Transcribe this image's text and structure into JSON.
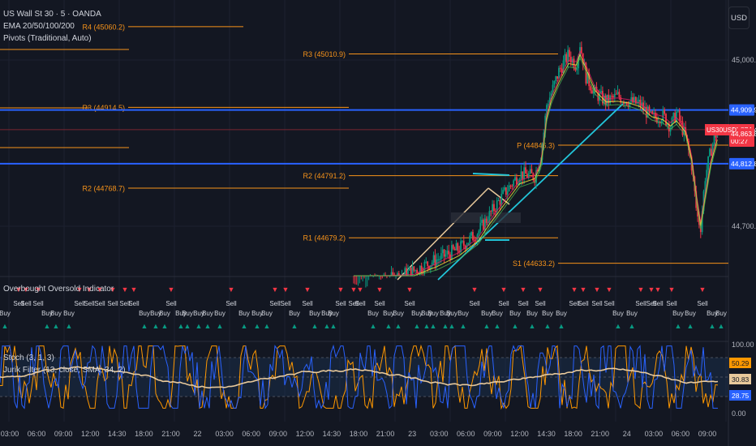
{
  "header": {
    "symbol_line": "US Wall St 30 · 5 · OANDA",
    "ema_line": "EMA 20/50/100/200",
    "pivots_line": "Pivots (Traditional, Auto)",
    "currency_button": "USD"
  },
  "indicators": {
    "ob_os_title": "Overbought Oversold Indicator",
    "stoch_title": "Stoch (3, 1, 3)",
    "jurik_title": "Jurik Filter (13, close, SMA, 34, 2)",
    "sell_label": "Sell",
    "buy_label": "Buy"
  },
  "price_scale": {
    "ticks": [
      "45,000.0",
      "44,700.0"
    ],
    "symbol_tag": "US30USD",
    "last_price": "44,874.4",
    "countdown": "00:27",
    "red_marker": "44,863.8",
    "blue_upper": "44,909.9",
    "blue_lower": "44,812.8"
  },
  "osc_scale": {
    "ticks": [
      "100.00",
      "0.00"
    ],
    "stoch_k": "50.29",
    "stoch_d": "30.83",
    "jurik": "28.75"
  },
  "time_axis": [
    "03:00",
    "06:00",
    "09:00",
    "12:00",
    "14:30",
    "18:00",
    "21:00",
    "22",
    "03:00",
    "06:00",
    "09:00",
    "12:00",
    "14:30",
    "18:00",
    "21:00",
    "23",
    "03:00",
    "06:00",
    "09:00",
    "12:00",
    "14:30",
    "18:00",
    "21:00",
    "24",
    "03:00",
    "06:00",
    "09:00"
  ],
  "colors": {
    "background": "#131722",
    "pivot": "#f7931a",
    "blue_line": "#2962ff",
    "trend_cyan": "#22c5d9",
    "trend_tan": "#e8c99b",
    "sell": "#f23645",
    "buy": "#089981",
    "stoch_k": "#2962ff",
    "stoch_d": "#ff9800",
    "jurik": "#e8c99b"
  },
  "chart_data": {
    "type": "line",
    "title": "US Wall St 30 · 5 · OANDA",
    "ylim": [
      44600,
      45060
    ],
    "pivots": [
      {
        "name": "R4",
        "label": "R4 (45060.2)",
        "value": 45060.2
      },
      {
        "name": "R3",
        "label": "R3 (45010.9)",
        "value": 45010.9
      },
      {
        "name": "R3",
        "label": "R3 (44914.5)",
        "value": 44914.5
      },
      {
        "name": "P",
        "label": "P (44846.3)",
        "value": 44846.3
      },
      {
        "name": "R2",
        "label": "R2 (44791.2)",
        "value": 44791.2
      },
      {
        "name": "R2",
        "label": "R2 (44768.7)",
        "value": 44768.7
      },
      {
        "name": "R1",
        "label": "R1 (44679.2)",
        "value": 44679.2
      },
      {
        "name": "S1",
        "label": "S1 (44633.2)",
        "value": 44633.2
      }
    ],
    "horizontal_levels": [
      44909.9,
      44812.8,
      44874.4
    ],
    "price_path": [
      [
        0,
        44590
      ],
      [
        40,
        44600
      ],
      [
        80,
        44620
      ],
      [
        110,
        44640
      ],
      [
        140,
        44660
      ],
      [
        165,
        44690
      ],
      [
        180,
        44720
      ],
      [
        200,
        44760
      ],
      [
        220,
        44795
      ],
      [
        240,
        44790
      ],
      [
        248,
        44830
      ],
      [
        252,
        44870
      ],
      [
        256,
        44920
      ],
      [
        262,
        44940
      ],
      [
        272,
        44980
      ],
      [
        285,
        45010
      ],
      [
        295,
        44990
      ],
      [
        300,
        45030
      ],
      [
        308,
        44970
      ],
      [
        320,
        44940
      ],
      [
        335,
        44925
      ],
      [
        350,
        44935
      ],
      [
        365,
        44925
      ],
      [
        380,
        44920
      ],
      [
        395,
        44895
      ],
      [
        410,
        44900
      ],
      [
        420,
        44880
      ],
      [
        428,
        44905
      ],
      [
        440,
        44860
      ],
      [
        448,
        44810
      ],
      [
        455,
        44720
      ],
      [
        460,
        44700
      ],
      [
        466,
        44790
      ],
      [
        474,
        44840
      ],
      [
        482,
        44874
      ]
    ],
    "stochastic": {
      "k": 50.29,
      "d": 30.83,
      "jurik": 28.75,
      "range": [
        0,
        100
      ]
    }
  }
}
